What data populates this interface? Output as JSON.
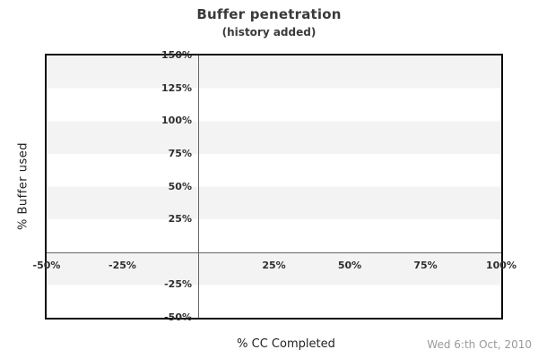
{
  "header": {
    "title": "Buffer penetration",
    "subtitle": "(history added)"
  },
  "footer": {
    "date": "Wed 6:th Oct, 2010"
  },
  "chart_data": {
    "type": "line",
    "title": "Buffer penetration",
    "subtitle": "(history added)",
    "xlabel": "% CC Completed",
    "ylabel": "% Buffer used",
    "xlim": [
      -50,
      100
    ],
    "ylim": [
      -50,
      150
    ],
    "x_ticks": {
      "values": [
        -50,
        -25,
        25,
        50,
        75,
        100
      ],
      "labels": [
        "-50%",
        "-25%",
        "25%",
        "50%",
        "75%",
        "100%"
      ]
    },
    "y_ticks": {
      "values": [
        150,
        125,
        100,
        75,
        50,
        25,
        -25,
        -50
      ],
      "labels": [
        "150%",
        "125%",
        "100%",
        "75%",
        "50%",
        "25%",
        "-25%",
        "-50%"
      ]
    },
    "grid": "alternating horizontal bands every 25%, gray band at top (150-125)",
    "legend_position": "none",
    "series": []
  },
  "colors": {
    "background": "#ffffff",
    "band_gray": "#f3f3f3",
    "band_white": "#ffffff",
    "plot_border": "#0a0a0a",
    "axis_line": "#666666",
    "tick_text": "#2e2e2e",
    "title_text": "#3a3a3a",
    "date_text": "#999999"
  }
}
